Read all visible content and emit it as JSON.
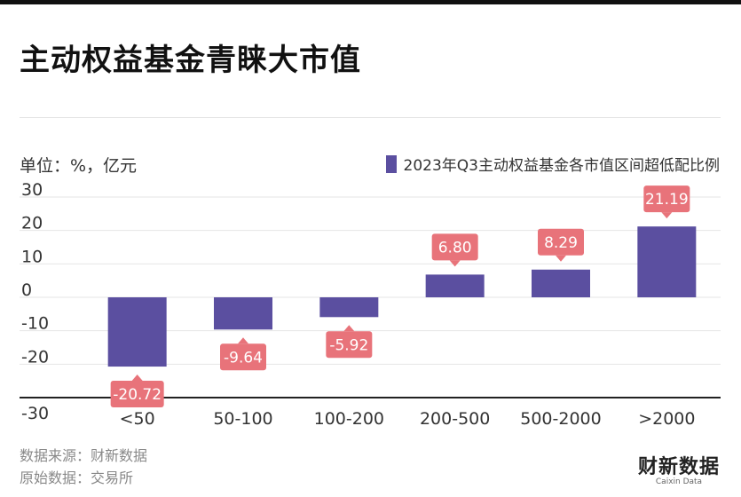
{
  "title": "主动权益基金青睐大市值",
  "unit_label": "单位：%，亿元",
  "legend_label": "2023年Q3主动权益基金各市值区间超低配比例",
  "source_line1": "数据来源：财新数据",
  "source_line2": "原始数据：交易所",
  "logo_text": "财新数据",
  "logo_sub": "Caixin Data",
  "colors": {
    "bar": "#5b4fa0",
    "label_bg": "#e8737a",
    "axis": "#222222",
    "grid": "#e6e6e6"
  },
  "chart_data": {
    "type": "bar",
    "categories": [
      "<50",
      "50-100",
      "100-200",
      "200-500",
      "500-2000",
      ">2000"
    ],
    "values": [
      -20.72,
      -9.64,
      -5.92,
      6.8,
      8.29,
      21.19
    ],
    "value_labels": [
      "-20.72",
      "-9.64",
      "-5.92",
      "6.80",
      "8.29",
      "21.19"
    ],
    "ylim": [
      -30,
      30
    ],
    "yticks": [
      "30",
      "20",
      "10",
      "0",
      "-10",
      "-20",
      "-30"
    ],
    "ytick_values": [
      30,
      20,
      10,
      0,
      -10,
      -20,
      -30
    ],
    "grid": true,
    "legend_position": "top-right"
  }
}
